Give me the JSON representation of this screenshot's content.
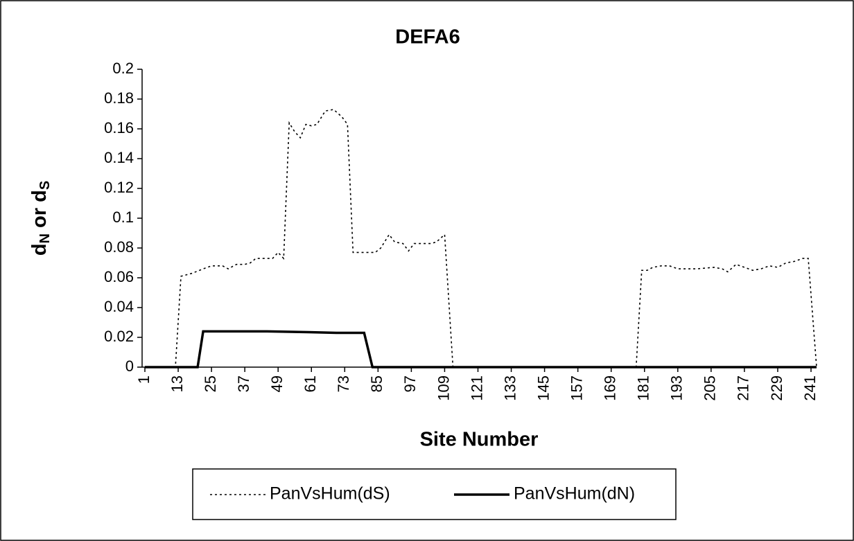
{
  "chart_data": {
    "type": "line",
    "title": "DEFA6",
    "xlabel": "Site Number",
    "ylabel": [
      "d",
      "N",
      " or d",
      "S"
    ],
    "xlim": [
      0,
      243
    ],
    "xticks": [
      1,
      13,
      25,
      37,
      49,
      61,
      73,
      85,
      97,
      109,
      121,
      133,
      145,
      157,
      169,
      181,
      193,
      205,
      217,
      229,
      241
    ],
    "ylim": [
      0,
      0.2
    ],
    "yticks": [
      0,
      0.02,
      0.04,
      0.06,
      0.08,
      0.1,
      0.12,
      0.14,
      0.16,
      0.18,
      0.2
    ],
    "legend": "bottom",
    "series": [
      {
        "name": "PanVsHum(dS)",
        "color": "#000000",
        "style": "dotted",
        "x": [
          1,
          12,
          14,
          18,
          22,
          25,
          29,
          31,
          34,
          37,
          39,
          41,
          47,
          49,
          51,
          53,
          55,
          57,
          59,
          61,
          63,
          66,
          69,
          72,
          74,
          76,
          82,
          84,
          86,
          89,
          91,
          94,
          96,
          98,
          104,
          106,
          109,
          112,
          178,
          180,
          182,
          184,
          187,
          190,
          193,
          200,
          206,
          209,
          211,
          214,
          217,
          220,
          223,
          226,
          229,
          232,
          235,
          238,
          240,
          243
        ],
        "values": [
          0,
          0,
          0.061,
          0.063,
          0.066,
          0.068,
          0.068,
          0.066,
          0.069,
          0.069,
          0.07,
          0.073,
          0.073,
          0.077,
          0.073,
          0.164,
          0.158,
          0.154,
          0.163,
          0.162,
          0.163,
          0.172,
          0.173,
          0.168,
          0.163,
          0.077,
          0.077,
          0.077,
          0.08,
          0.089,
          0.084,
          0.083,
          0.078,
          0.083,
          0.083,
          0.084,
          0.089,
          0,
          0,
          0.065,
          0.065,
          0.067,
          0.068,
          0.068,
          0.066,
          0.066,
          0.067,
          0.066,
          0.064,
          0.069,
          0.067,
          0.065,
          0.066,
          0.068,
          0.067,
          0.07,
          0.071,
          0.073,
          0.073,
          0
        ]
      },
      {
        "name": "PanVsHum(dN)",
        "color": "#000000",
        "style": "solid",
        "x": [
          1,
          20,
          22,
          26,
          45,
          60,
          70,
          80,
          83,
          243
        ],
        "values": [
          0,
          0,
          0.024,
          0.024,
          0.024,
          0.0235,
          0.023,
          0.023,
          0,
          0
        ]
      }
    ]
  }
}
